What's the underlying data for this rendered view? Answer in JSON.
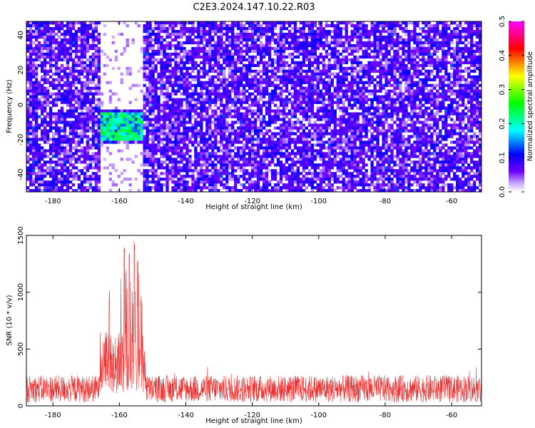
{
  "figure_title": "C2E3.2024.147.10.22.R03",
  "chart_data": [
    {
      "type": "heatmap",
      "xlabel": "Height of straight line (km)",
      "ylabel": "Frequency (Hz)",
      "xlim": [
        -188,
        -51
      ],
      "ylim": [
        -50,
        48
      ],
      "x_ticks": [
        -180,
        -160,
        -140,
        -120,
        -100,
        -80,
        -60
      ],
      "y_ticks": [
        -40,
        -20,
        0,
        20,
        40
      ],
      "colorbar": {
        "label": "Normalized spectral amplitude",
        "range": [
          0.0,
          0.5
        ],
        "ticks": [
          0.0,
          0.1,
          0.2,
          0.3,
          0.4,
          0.5
        ],
        "colors": [
          "#ffffff",
          "#7000ff",
          "#0000ff",
          "#00ffff",
          "#00ff00",
          "#ffff00",
          "#ff0000",
          "#ff00ff"
        ]
      },
      "background_level": 0.05,
      "gap_columns_x": [
        -166,
        -153
      ],
      "gap_frequency_band": [
        -2,
        48
      ],
      "gap_frequency_band_low": [
        -50,
        -22
      ],
      "signal_region": {
        "x": [
          -166,
          -153
        ],
        "freq": [
          -20,
          -5
        ],
        "peak_amplitude": 0.27
      }
    },
    {
      "type": "line",
      "xlabel": "Height of straight line (km)",
      "ylabel": "SNR (10 * v/v)",
      "xlim": [
        -188,
        -51
      ],
      "ylim": [
        0,
        1500
      ],
      "x_ticks": [
        -180,
        -160,
        -140,
        -120,
        -100,
        -80,
        -60
      ],
      "y_ticks": [
        0,
        500,
        1000,
        1500
      ],
      "color": "#ee3333",
      "baseline_level": 150,
      "baseline_noise": 120,
      "peaks": [
        {
          "x": -163,
          "value": 1020
        },
        {
          "x": -158.5,
          "value": 1460
        },
        {
          "x": -157,
          "value": 1420
        },
        {
          "x": -155.5,
          "value": 1500
        },
        {
          "x": -154.5,
          "value": 1400
        },
        {
          "x": -153.5,
          "value": 960
        }
      ],
      "elevated_region": [
        -166,
        -152
      ],
      "elevated_level": 550
    }
  ]
}
